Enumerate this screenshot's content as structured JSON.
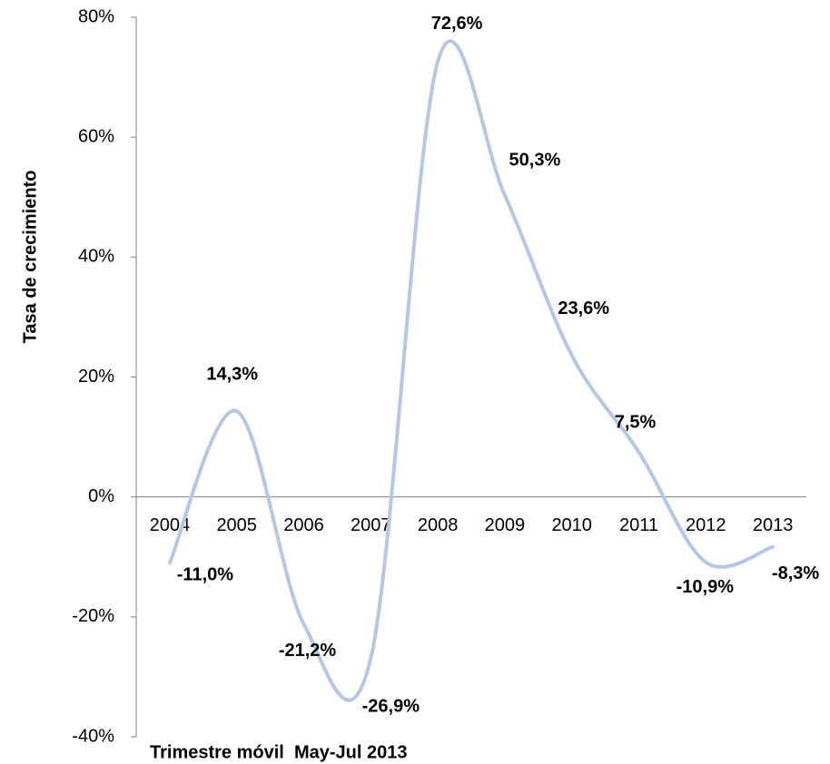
{
  "chart_data": {
    "type": "line",
    "y_label": "Tasa de crecimiento",
    "x_label": "Trimestre móvil  May-Jul 2013",
    "categories": [
      "2004",
      "2005",
      "2006",
      "2007",
      "2008",
      "2009",
      "2010",
      "2011",
      "2012",
      "2013"
    ],
    "series": [
      {
        "name": "Tasa de crecimiento",
        "color": "#b4c7e7",
        "values": [
          -11.0,
          14.3,
          -21.2,
          -26.9,
          72.6,
          50.3,
          23.6,
          7.5,
          -10.9,
          -8.3
        ],
        "value_labels": [
          "-11,0%",
          "14,3%",
          "-21,2%",
          "-26,9%",
          "72,6%",
          "50,3%",
          "23,6%",
          "7,5%",
          "-10,9%",
          "-8,3%"
        ]
      }
    ],
    "ylim": [
      -40,
      80
    ],
    "yticks": [
      {
        "value": -40,
        "label": "-40%"
      },
      {
        "value": -20,
        "label": "-20%"
      },
      {
        "value": 0,
        "label": "0%"
      },
      {
        "value": 20,
        "label": "20%"
      },
      {
        "value": 40,
        "label": "40%"
      },
      {
        "value": 60,
        "label": "60%"
      },
      {
        "value": 80,
        "label": "80%"
      }
    ],
    "smooth": true
  }
}
